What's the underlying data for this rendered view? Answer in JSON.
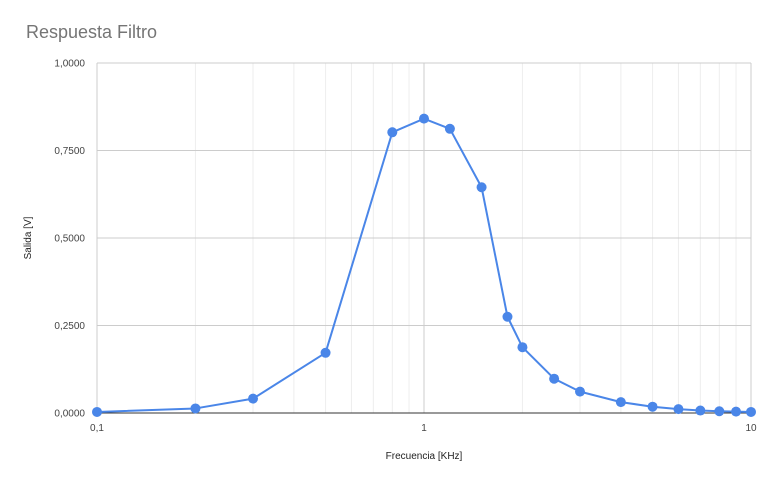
{
  "chart_data": {
    "type": "line",
    "title": "Respuesta Filtro",
    "xlabel": "Frecuencia [KHz]",
    "ylabel": "Salida [V]",
    "x_scale": "log",
    "xlim": [
      0.1,
      10
    ],
    "ylim": [
      0,
      1
    ],
    "x_ticks": [
      {
        "value": 0.1,
        "label": "0,1"
      },
      {
        "value": 1,
        "label": "1"
      },
      {
        "value": 10,
        "label": "10"
      }
    ],
    "y_ticks": [
      {
        "value": 0,
        "label": "0,0000"
      },
      {
        "value": 0.25,
        "label": "0,2500"
      },
      {
        "value": 0.5,
        "label": "0,5000"
      },
      {
        "value": 0.75,
        "label": "0,7500"
      },
      {
        "value": 1,
        "label": "1,0000"
      }
    ],
    "grid": true,
    "legend": "none",
    "series": [
      {
        "color": "#4a86e8",
        "points": [
          {
            "x": 0.1,
            "y": 0.003
          },
          {
            "x": 0.2,
            "y": 0.013
          },
          {
            "x": 0.3,
            "y": 0.041
          },
          {
            "x": 0.5,
            "y": 0.172
          },
          {
            "x": 0.8,
            "y": 0.802
          },
          {
            "x": 1.0,
            "y": 0.841
          },
          {
            "x": 1.2,
            "y": 0.812
          },
          {
            "x": 1.5,
            "y": 0.645
          },
          {
            "x": 1.8,
            "y": 0.275
          },
          {
            "x": 2.0,
            "y": 0.188
          },
          {
            "x": 2.5,
            "y": 0.098
          },
          {
            "x": 3.0,
            "y": 0.061
          },
          {
            "x": 4.0,
            "y": 0.031
          },
          {
            "x": 5.0,
            "y": 0.018
          },
          {
            "x": 6.0,
            "y": 0.011
          },
          {
            "x": 7.0,
            "y": 0.007
          },
          {
            "x": 8.0,
            "y": 0.005
          },
          {
            "x": 9.0,
            "y": 0.004
          },
          {
            "x": 10.0,
            "y": 0.003
          }
        ]
      }
    ]
  }
}
